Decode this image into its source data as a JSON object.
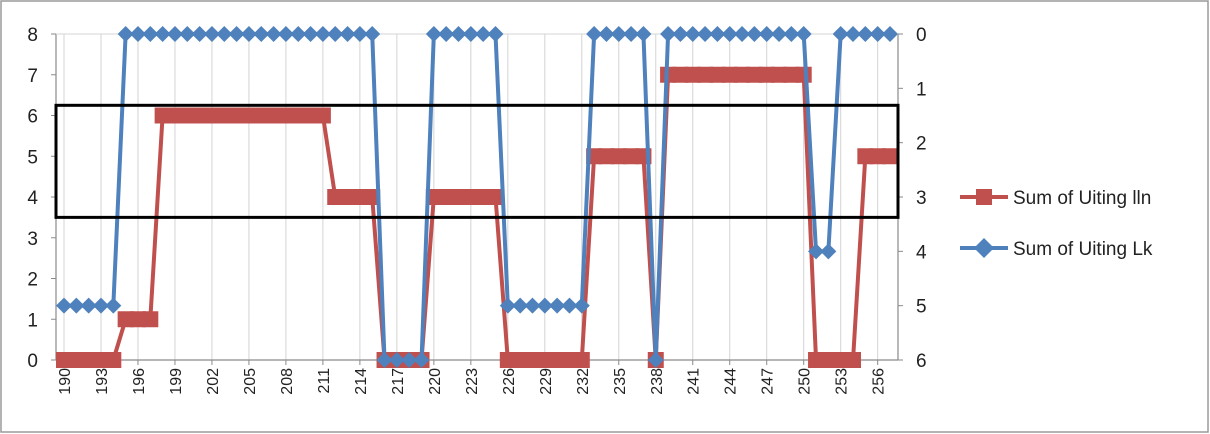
{
  "chart_data": {
    "type": "line",
    "title": "",
    "xlabel": "",
    "ylabel": "",
    "x": [
      190,
      191,
      192,
      193,
      194,
      195,
      196,
      197,
      198,
      199,
      200,
      201,
      202,
      203,
      204,
      205,
      206,
      207,
      208,
      209,
      210,
      211,
      212,
      213,
      214,
      215,
      216,
      217,
      218,
      219,
      220,
      221,
      222,
      223,
      224,
      225,
      226,
      227,
      228,
      229,
      230,
      231,
      232,
      233,
      234,
      235,
      236,
      237,
      238,
      239,
      240,
      241,
      242,
      243,
      244,
      245,
      246,
      247,
      248,
      249,
      250,
      251,
      252,
      253,
      254,
      255,
      256,
      257
    ],
    "x_tick_labels": [
      "190",
      "193",
      "196",
      "199",
      "202",
      "205",
      "208",
      "211",
      "214",
      "217",
      "220",
      "223",
      "226",
      "229",
      "232",
      "235",
      "238",
      "241",
      "244",
      "247",
      "250",
      "253",
      "256"
    ],
    "x_tick_values": [
      190,
      193,
      196,
      199,
      202,
      205,
      208,
      211,
      214,
      217,
      220,
      223,
      226,
      229,
      232,
      235,
      238,
      241,
      244,
      247,
      250,
      253,
      256
    ],
    "y_left_range": [
      0,
      8
    ],
    "y_left_ticks": [
      "0",
      "1",
      "2",
      "3",
      "4",
      "5",
      "6",
      "7",
      "8"
    ],
    "y_right_range": [
      6,
      0
    ],
    "y_right_ticks": [
      "0",
      "1",
      "2",
      "3",
      "4",
      "5",
      "6"
    ],
    "grid": "vertical",
    "legend_position": "right",
    "series": [
      {
        "name": "Sum of Uiting lln",
        "axis": "left",
        "color": "#c0504d",
        "marker": "square",
        "values": [
          0,
          0,
          0,
          0,
          0,
          1,
          1,
          1,
          6,
          6,
          6,
          6,
          6,
          6,
          6,
          6,
          6,
          6,
          6,
          6,
          6,
          6,
          4,
          4,
          4,
          4,
          0,
          0,
          0,
          0,
          4,
          4,
          4,
          4,
          4,
          4,
          0,
          0,
          0,
          0,
          0,
          0,
          0,
          5,
          5,
          5,
          5,
          5,
          0,
          7,
          7,
          7,
          7,
          7,
          7,
          7,
          7,
          7,
          7,
          7,
          7,
          0,
          0,
          0,
          0,
          5,
          5,
          5
        ]
      },
      {
        "name": "Sum of Uiting Lk",
        "axis": "right",
        "color": "#4f81bd",
        "marker": "diamond",
        "values": [
          5,
          5,
          5,
          5,
          5,
          0,
          0,
          0,
          0,
          0,
          0,
          0,
          0,
          0,
          0,
          0,
          0,
          0,
          0,
          0,
          0,
          0,
          0,
          0,
          0,
          0,
          6,
          6,
          6,
          6,
          0,
          0,
          0,
          0,
          0,
          0,
          5,
          5,
          5,
          5,
          5,
          5,
          5,
          0,
          0,
          0,
          0,
          0,
          6,
          0,
          0,
          0,
          0,
          0,
          0,
          0,
          0,
          0,
          0,
          0,
          0,
          4,
          4,
          0,
          0,
          0,
          0,
          0
        ]
      }
    ],
    "highlight_box": {
      "y_left_range": [
        3.5,
        6.25
      ],
      "border_color": "#000000"
    }
  }
}
